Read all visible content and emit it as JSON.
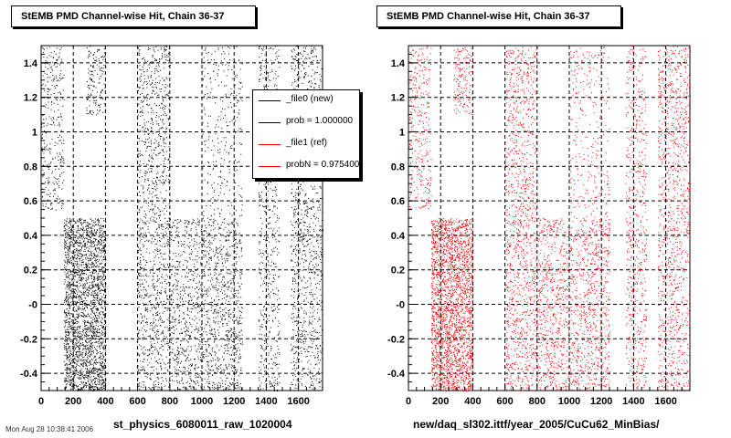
{
  "footer": "Mon Aug 28 10:38:41 2006",
  "chart_data": [
    {
      "type": "scatter",
      "title": "StEMB PMD Channel-wise Hit, Chain 36-37",
      "xlabel": "st_physics_6080011_raw_1020004",
      "ylabel": "",
      "xlim": [
        0,
        1750
      ],
      "ylim": [
        -0.5,
        1.5
      ],
      "xticks": [
        "0",
        "200",
        "400",
        "600",
        "800",
        "1000",
        "1200",
        "1400",
        "1600"
      ],
      "yticks": [
        "-0.4",
        "-0.2",
        "-0",
        "0.2",
        "0.4",
        "0.6",
        "0.8",
        "1",
        "1.2",
        "1.4"
      ],
      "grid": true,
      "point_color": "#000000",
      "legend": {
        "placement": "top-right",
        "entries": [
          {
            "label": "_file0 (new)",
            "color": "#000000"
          },
          {
            "label": "prob = 1.000000",
            "color": "#000000"
          },
          {
            "label": "_file1 (ref)",
            "color": "#ff0000"
          },
          {
            "label": "probN = 0.975400",
            "color": "#ff0000"
          }
        ]
      },
      "regions": [
        {
          "x": [
            0,
            140
          ],
          "y": [
            0.55,
            1.5
          ],
          "density": 0.25
        },
        {
          "x": [
            140,
            400
          ],
          "y": [
            -0.5,
            0.5
          ],
          "density": 1.0
        },
        {
          "x": [
            280,
            400
          ],
          "y": [
            1.1,
            1.5
          ],
          "density": 0.35
        },
        {
          "x": [
            600,
            800
          ],
          "y": [
            0.5,
            1.5
          ],
          "density": 0.3
        },
        {
          "x": [
            600,
            1250
          ],
          "y": [
            -0.5,
            0.5
          ],
          "density": 0.35
        },
        {
          "x": [
            1000,
            1250
          ],
          "y": [
            0.5,
            1.5
          ],
          "density": 0.12
        },
        {
          "x": [
            1350,
            1480
          ],
          "y": [
            -0.5,
            1.5
          ],
          "density": 0.25
        },
        {
          "x": [
            1550,
            1750
          ],
          "y": [
            -0.5,
            1.5
          ],
          "density": 0.3
        }
      ]
    },
    {
      "type": "scatter",
      "title": "StEMB PMD Channel-wise Hit, Chain 36-37",
      "xlabel": "new/daq_sl302.ittf/year_2005/CuCu62_MinBias/",
      "ylabel": "",
      "xlim": [
        0,
        1750
      ],
      "ylim": [
        -0.5,
        1.5
      ],
      "xticks": [
        "0",
        "200",
        "400",
        "600",
        "800",
        "1000",
        "1200",
        "1400",
        "1600"
      ],
      "yticks": [
        "-0.4",
        "-0.2",
        "-0",
        "0.2",
        "0.4",
        "0.6",
        "0.8",
        "1",
        "1.2",
        "1.4"
      ],
      "grid": true,
      "point_color": "#ff0000",
      "regions": [
        {
          "x": [
            0,
            140
          ],
          "y": [
            0.55,
            1.5
          ],
          "density": 0.25
        },
        {
          "x": [
            140,
            400
          ],
          "y": [
            -0.5,
            0.5
          ],
          "density": 1.0
        },
        {
          "x": [
            280,
            400
          ],
          "y": [
            1.1,
            1.5
          ],
          "density": 0.35
        },
        {
          "x": [
            600,
            800
          ],
          "y": [
            0.5,
            1.5
          ],
          "density": 0.3
        },
        {
          "x": [
            600,
            1250
          ],
          "y": [
            -0.5,
            0.5
          ],
          "density": 0.35
        },
        {
          "x": [
            1000,
            1250
          ],
          "y": [
            0.5,
            1.5
          ],
          "density": 0.12
        },
        {
          "x": [
            1350,
            1480
          ],
          "y": [
            -0.5,
            1.5
          ],
          "density": 0.25
        },
        {
          "x": [
            1550,
            1750
          ],
          "y": [
            -0.5,
            1.5
          ],
          "density": 0.3
        }
      ]
    }
  ]
}
